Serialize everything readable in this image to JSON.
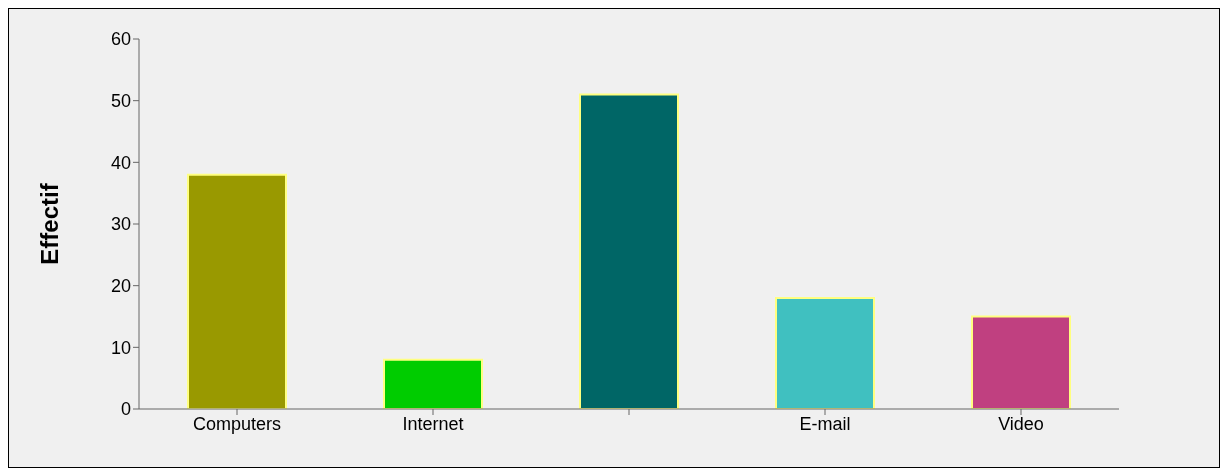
{
  "chart_data": {
    "type": "bar",
    "ylabel": "Effectif",
    "categories": [
      "Computers",
      "Internet",
      null,
      "E-mail",
      "Video"
    ],
    "values": [
      38,
      8,
      51,
      18,
      15
    ],
    "colors": [
      "#999900",
      "#00cc00",
      "#006666",
      "#40c0c0",
      "#c04080"
    ],
    "ylim": [
      0,
      60
    ],
    "yticks": [
      0,
      10,
      20,
      30,
      40,
      50,
      60
    ],
    "grid": false
  }
}
